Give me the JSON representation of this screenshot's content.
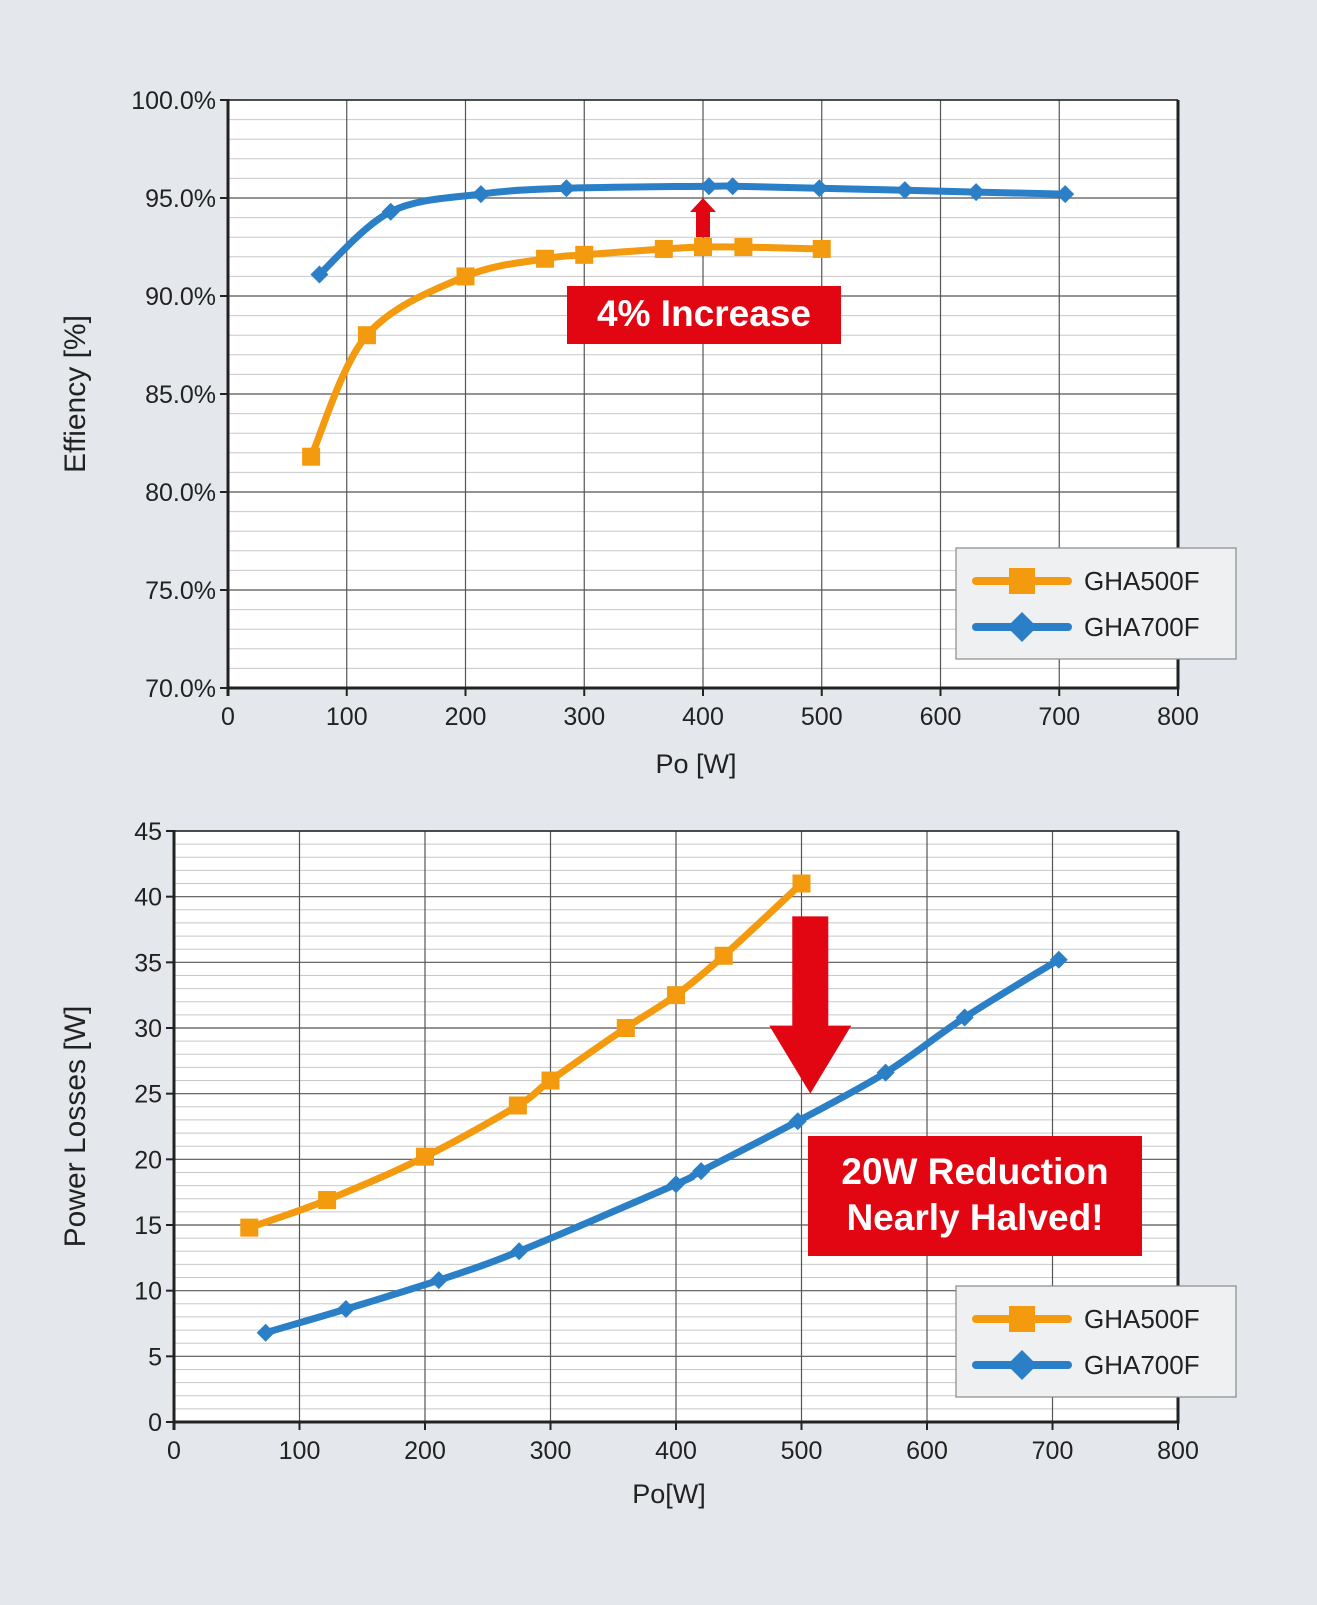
{
  "colors": {
    "background": "#e4e8ec",
    "gha500f": "#f39a0e",
    "gha700f": "#2a7fc6",
    "callout": "#e20613",
    "axis": "#222222",
    "grid_major": "#555555",
    "grid_minor": "#c8c8c8"
  },
  "chart_data": [
    {
      "type": "line",
      "xlabel": "Po [W]",
      "ylabel": "Effiency [%]",
      "xlim": [
        0,
        800
      ],
      "ylim": [
        70,
        100
      ],
      "x_ticks": [
        "0",
        "100",
        "200",
        "300",
        "400",
        "500",
        "600",
        "700",
        "800"
      ],
      "y_ticks": [
        "70.0%",
        "75.0%",
        "80.0%",
        "85.0%",
        "90.0%",
        "95.0%",
        "100.0%"
      ],
      "grid": true,
      "legend_position": "bottom-right",
      "series": [
        {
          "name": "GHA500F",
          "marker": "square",
          "color": "#f39a0e",
          "x": [
            70,
            117,
            200,
            267,
            300,
            367,
            400,
            434,
            500
          ],
          "y": [
            81.8,
            88.0,
            91.0,
            91.9,
            92.1,
            92.4,
            92.5,
            92.5,
            92.4
          ]
        },
        {
          "name": "GHA700F",
          "marker": "diamond",
          "color": "#2a7fc6",
          "x": [
            77,
            137,
            213,
            285,
            405,
            425,
            498,
            570,
            630,
            705
          ],
          "y": [
            91.1,
            94.3,
            95.2,
            95.5,
            95.6,
            95.6,
            95.5,
            95.4,
            95.3,
            95.2
          ]
        }
      ],
      "annotations": [
        {
          "text": "4% Increase",
          "style": "red-box"
        },
        {
          "style": "red-arrow-up",
          "at_x": 400,
          "from_y": 93.0,
          "to_y": 95.0
        }
      ]
    },
    {
      "type": "line",
      "xlabel": "Po[W]",
      "ylabel": "Power Losses [W]",
      "xlim": [
        0,
        800
      ],
      "ylim": [
        0,
        45
      ],
      "x_ticks": [
        "0",
        "100",
        "200",
        "300",
        "400",
        "500",
        "600",
        "700",
        "800"
      ],
      "y_ticks": [
        "0",
        "5",
        "10",
        "15",
        "20",
        "25",
        "30",
        "35",
        "40",
        "45"
      ],
      "grid": true,
      "legend_position": "bottom-right",
      "series": [
        {
          "name": "GHA500F",
          "marker": "square",
          "color": "#f39a0e",
          "x": [
            60,
            122,
            200,
            274,
            300,
            360,
            400,
            438,
            500
          ],
          "y": [
            14.8,
            16.9,
            20.2,
            24.1,
            26.0,
            30.0,
            32.5,
            35.5,
            41.0
          ]
        },
        {
          "name": "GHA700F",
          "marker": "diamond",
          "color": "#2a7fc6",
          "x": [
            73,
            137,
            211,
            275,
            400,
            420,
            497,
            567,
            630,
            705
          ],
          "y": [
            6.8,
            8.6,
            10.8,
            13.0,
            18.1,
            19.1,
            22.9,
            26.6,
            30.8,
            35.2
          ]
        }
      ],
      "annotations": [
        {
          "text": "20W Reduction",
          "style": "red-box"
        },
        {
          "text": "Nearly Halved!",
          "style": "red-box"
        },
        {
          "style": "red-arrow-down",
          "at_x": 507,
          "from_y": 38.5,
          "to_y": 25.0
        }
      ]
    }
  ]
}
